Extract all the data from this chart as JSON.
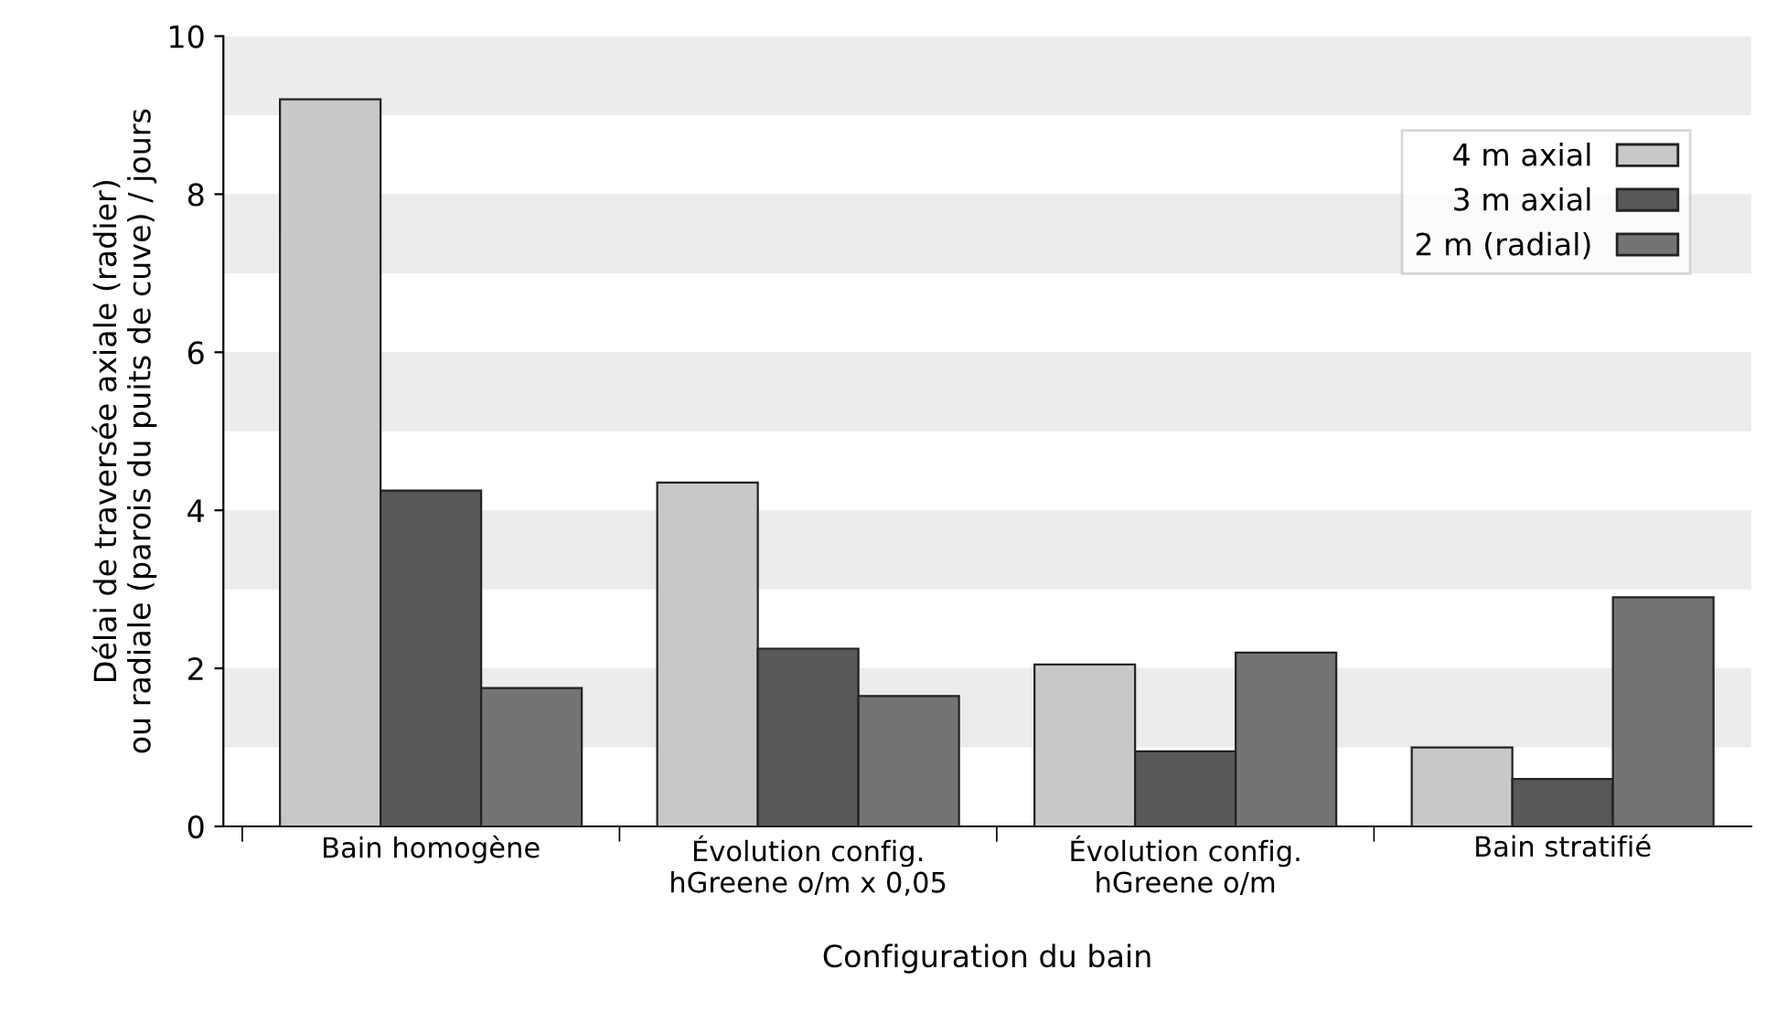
{
  "chart_data": {
    "type": "bar",
    "xlabel": "Configuration du bain",
    "ylabel": "Délai de traversée axiale (radier)\nou radiale (parois du puits de cuve) / jours",
    "categories": [
      "Bain homogène",
      "Évolution config.\nhGreene o/m x 0,05",
      "Évolution config.\nhGreene o/m",
      "Bain stratifié"
    ],
    "series": [
      {
        "name": "4 m axial",
        "color": "#c8c8c8",
        "values": [
          9.2,
          4.35,
          2.05,
          1.0
        ]
      },
      {
        "name": "3 m axial",
        "color": "#585858",
        "values": [
          4.25,
          2.25,
          0.95,
          0.6
        ]
      },
      {
        "name": "2 m (radial)",
        "color": "#747474",
        "values": [
          1.75,
          1.65,
          2.2,
          2.9
        ]
      }
    ],
    "ylim": [
      0,
      10
    ],
    "yticks": [
      0,
      2,
      4,
      6,
      8,
      10
    ],
    "bands": [
      {
        "axis": "y",
        "from": 1,
        "to": 2,
        "color": "#ececec"
      },
      {
        "axis": "y",
        "from": 3,
        "to": 4,
        "color": "#ececec"
      },
      {
        "axis": "y",
        "from": 5,
        "to": 6,
        "color": "#ececec"
      },
      {
        "axis": "y",
        "from": 7,
        "to": 8,
        "color": "#ececec"
      },
      {
        "axis": "y",
        "from": 9,
        "to": 10,
        "color": "#ececec"
      }
    ],
    "grid": false,
    "legend": "top right"
  }
}
